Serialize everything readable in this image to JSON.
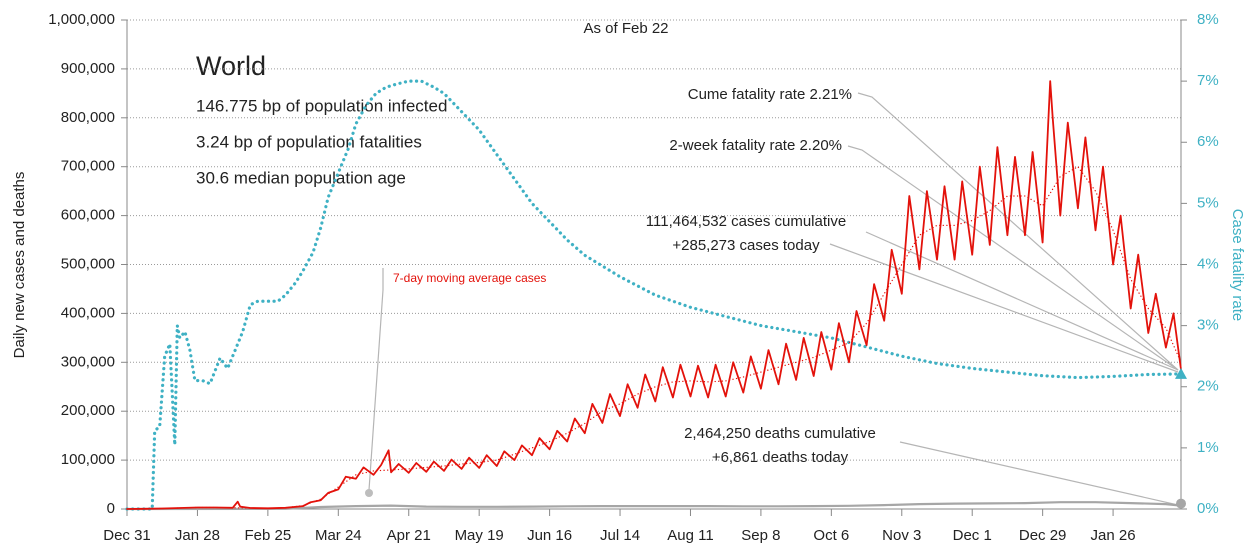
{
  "chart_data": {
    "type": "line",
    "annotations": {
      "as_of": "As of Feb 22",
      "region": "World",
      "infected": "146.775 bp of population infected",
      "fatalities": "3.24 bp of population fatalities",
      "age": "30.6 median population age",
      "cume_rate": "Cume fatality rate 2.21%",
      "two_week_rate": "2-week fatality rate 2.20%",
      "cases_cumulative": "111,464,532 cases cumulative",
      "cases_today": "+285,273 cases today",
      "deaths_cumulative": "2,464,250 deaths cumulative",
      "deaths_today": "+6,861 deaths today"
    },
    "ylabel": "Daily new cases and deaths",
    "y2label": "Case fatality rate",
    "xlim": [
      0,
      419
    ],
    "xticks": [
      {
        "value": 0,
        "label": "Dec 31"
      },
      {
        "value": 28,
        "label": "Jan 28"
      },
      {
        "value": 56,
        "label": "Feb 25"
      },
      {
        "value": 84,
        "label": "Mar 24"
      },
      {
        "value": 112,
        "label": "Apr 21"
      },
      {
        "value": 140,
        "label": "May 19"
      },
      {
        "value": 168,
        "label": "Jun 16"
      },
      {
        "value": 196,
        "label": "Jul 14"
      },
      {
        "value": 224,
        "label": "Aug 11"
      },
      {
        "value": 252,
        "label": "Sep 8"
      },
      {
        "value": 280,
        "label": "Oct 6"
      },
      {
        "value": 308,
        "label": "Nov 3"
      },
      {
        "value": 336,
        "label": "Dec 1"
      },
      {
        "value": 364,
        "label": "Dec 29"
      },
      {
        "value": 392,
        "label": "Jan 26"
      }
    ],
    "ylim": [
      0,
      1000000
    ],
    "yticks": [
      0,
      {
        "value": 100000,
        "label": "100,000"
      },
      {
        "value": 200000,
        "label": "200,000"
      },
      {
        "value": 300000,
        "label": "300,000"
      },
      {
        "value": 400000,
        "label": "400,000"
      },
      {
        "value": 500000,
        "label": "500,000"
      },
      {
        "value": 600000,
        "label": "600,000"
      },
      {
        "value": 700000,
        "label": "700,000"
      },
      {
        "value": 800000,
        "label": "800,000"
      },
      {
        "value": 900000,
        "label": "900,000"
      },
      {
        "value": 1000000,
        "label": "1,000,000"
      }
    ],
    "y2lim": [
      0,
      8
    ],
    "y2ticks": [
      {
        "value": 0,
        "label": "0%"
      },
      {
        "value": 1,
        "label": "1%"
      },
      {
        "value": 2,
        "label": "2%"
      },
      {
        "value": 3,
        "label": "3%"
      },
      {
        "value": 4,
        "label": "4%"
      },
      {
        "value": 5,
        "label": "5%"
      },
      {
        "value": 6,
        "label": "6%"
      },
      {
        "value": 7,
        "label": "7%"
      },
      {
        "value": 8,
        "label": "8%"
      }
    ],
    "grid": true,
    "series": [
      {
        "color": "#e3120b",
        "style": "solid",
        "x": [
          0,
          7,
          14,
          21,
          28,
          35,
          42,
          44,
          45,
          49,
          56,
          63,
          70,
          73,
          77,
          80,
          84,
          87,
          91,
          94,
          98,
          101,
          104,
          105,
          108,
          112,
          115,
          119,
          122,
          126,
          129,
          133,
          136,
          140,
          143,
          147,
          150,
          154,
          157,
          161,
          164,
          168,
          171,
          175,
          178,
          182,
          185,
          189,
          192,
          196,
          199,
          203,
          206,
          210,
          213,
          217,
          220,
          224,
          227,
          231,
          234,
          238,
          241,
          245,
          248,
          252,
          255,
          259,
          262,
          266,
          269,
          273,
          276,
          280,
          283,
          287,
          290,
          294,
          297,
          301,
          304,
          308,
          311,
          315,
          318,
          322,
          325,
          329,
          332,
          336,
          339,
          343,
          346,
          350,
          353,
          357,
          360,
          364,
          367,
          368,
          371,
          374,
          378,
          381,
          385,
          388,
          392,
          395,
          399,
          402,
          406,
          409,
          413,
          416,
          419
        ],
        "values": [
          0,
          500,
          1000,
          2000,
          3000,
          3000,
          2500,
          15000,
          5000,
          2000,
          1500,
          2500,
          6000,
          14000,
          18000,
          33000,
          40000,
          66000,
          62000,
          85000,
          70000,
          90000,
          120000,
          75000,
          92000,
          74000,
          94000,
          76000,
          97000,
          78000,
          101000,
          82000,
          105000,
          84000,
          110000,
          88000,
          118000,
          100000,
          130000,
          110000,
          145000,
          122000,
          160000,
          138000,
          185000,
          155000,
          215000,
          176000,
          235000,
          190000,
          255000,
          207000,
          275000,
          220000,
          290000,
          228000,
          295000,
          230000,
          293000,
          228000,
          295000,
          230000,
          300000,
          238000,
          312000,
          246000,
          325000,
          255000,
          338000,
          264000,
          350000,
          272000,
          362000,
          285000,
          380000,
          300000,
          405000,
          335000,
          460000,
          385000,
          530000,
          440000,
          640000,
          490000,
          650000,
          510000,
          660000,
          510000,
          670000,
          520000,
          700000,
          540000,
          740000,
          560000,
          720000,
          560000,
          730000,
          545000,
          875000,
          800000,
          600000,
          790000,
          615000,
          760000,
          570000,
          700000,
          500000,
          600000,
          410000,
          520000,
          360000,
          440000,
          330000,
          400000,
          285000
        ]
      },
      {
        "name": "7-day moving average cases",
        "color": "#e3120b",
        "style": "dotted",
        "x": [
          0,
          7,
          14,
          21,
          28,
          35,
          42,
          49,
          56,
          63,
          70,
          77,
          84,
          91,
          98,
          105,
          112,
          119,
          126,
          133,
          140,
          147,
          154,
          161,
          168,
          175,
          182,
          189,
          196,
          203,
          210,
          217,
          224,
          231,
          238,
          245,
          252,
          259,
          266,
          273,
          280,
          287,
          294,
          301,
          308,
          315,
          322,
          329,
          336,
          343,
          350,
          357,
          364,
          371,
          378,
          385,
          392,
          399,
          406,
          413,
          419
        ],
        "values": [
          0,
          500,
          1000,
          2000,
          3000,
          3000,
          2500,
          2000,
          1500,
          2500,
          7000,
          20000,
          45000,
          70000,
          78000,
          80000,
          82000,
          85000,
          88000,
          92000,
          95000,
          100000,
          112000,
          125000,
          138000,
          155000,
          175000,
          200000,
          215000,
          235000,
          250000,
          260000,
          262000,
          260000,
          262000,
          270000,
          280000,
          290000,
          300000,
          310000,
          325000,
          340000,
          380000,
          440000,
          500000,
          560000,
          580000,
          580000,
          590000,
          610000,
          640000,
          640000,
          620000,
          680000,
          700000,
          650000,
          570000,
          470000,
          410000,
          370000,
          300000
        ]
      },
      {
        "color": "#a6a6a6",
        "style": "solid",
        "x": [
          0,
          63,
          77,
          91,
          105,
          119,
          133,
          147,
          161,
          175,
          189,
          203,
          217,
          231,
          245,
          259,
          273,
          287,
          301,
          315,
          329,
          343,
          357,
          371,
          385,
          399,
          413,
          419
        ],
        "values": [
          0,
          500,
          4000,
          6000,
          7000,
          5000,
          4500,
          4500,
          5000,
          5500,
          6000,
          6000,
          6000,
          6000,
          5500,
          5500,
          6000,
          6500,
          8000,
          10000,
          11000,
          11500,
          12000,
          14000,
          14000,
          12000,
          10000,
          7000
        ]
      },
      {
        "color": "#3fb1c4",
        "style": "dotted",
        "axis": "y2",
        "x": [
          0,
          10,
          11,
          13,
          15,
          17,
          19,
          20,
          21,
          23,
          25,
          27,
          30,
          33,
          37,
          40,
          43,
          46,
          49,
          52,
          56,
          60,
          63,
          67,
          70,
          74,
          77,
          80,
          84,
          88,
          91,
          95,
          99,
          103,
          107,
          112,
          117,
          122,
          126,
          133,
          140,
          147,
          154,
          161,
          168,
          175,
          182,
          196,
          210,
          224,
          238,
          252,
          266,
          280,
          294,
          308,
          322,
          336,
          350,
          364,
          378,
          392,
          406,
          419
        ],
        "values": [
          0,
          0,
          1.28,
          1.35,
          2.5,
          2.7,
          1.05,
          3.0,
          2.8,
          2.9,
          2.6,
          2.1,
          2.1,
          2.05,
          2.47,
          2.3,
          2.6,
          2.9,
          3.34,
          3.4,
          3.4,
          3.4,
          3.5,
          3.7,
          3.9,
          4.2,
          4.6,
          5.1,
          5.5,
          5.9,
          6.3,
          6.6,
          6.8,
          6.9,
          6.95,
          7.0,
          7.0,
          6.9,
          6.8,
          6.5,
          6.2,
          5.8,
          5.4,
          5.0,
          4.7,
          4.4,
          4.15,
          3.8,
          3.5,
          3.3,
          3.15,
          3.0,
          2.9,
          2.8,
          2.65,
          2.5,
          2.38,
          2.3,
          2.24,
          2.18,
          2.15,
          2.17,
          2.2,
          2.21
        ]
      }
    ]
  }
}
